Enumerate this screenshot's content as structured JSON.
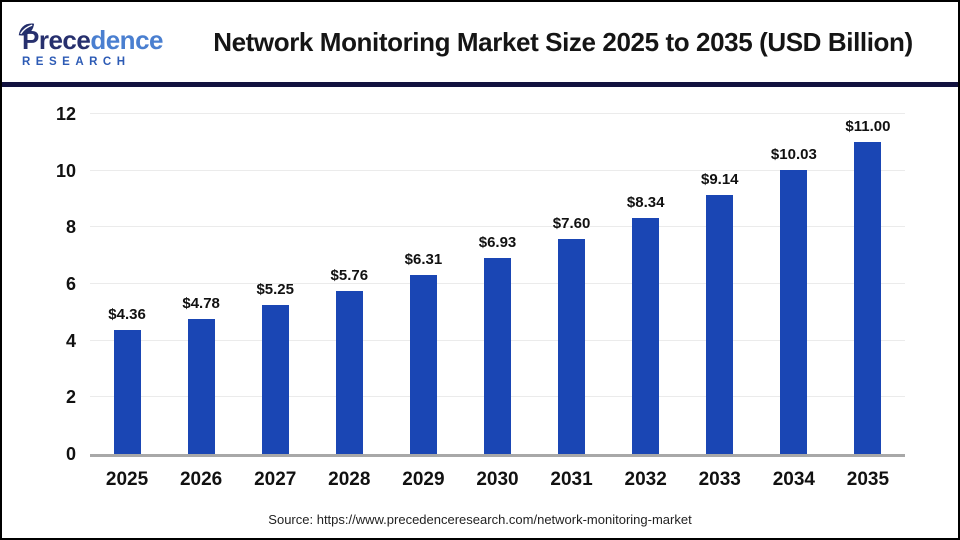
{
  "header": {
    "logo": {
      "name_part1": "Prece",
      "name_part2": "dence",
      "subtitle": "RESEARCH"
    },
    "title": "Network Monitoring Market Size 2025 to 2035 (USD Billion)"
  },
  "chart_data": {
    "type": "bar",
    "title": "Network Monitoring Market Size 2025 to 2035 (USD Billion)",
    "categories": [
      "2025",
      "2026",
      "2027",
      "2028",
      "2029",
      "2030",
      "2031",
      "2032",
      "2033",
      "2034",
      "2035"
    ],
    "values": [
      4.36,
      4.78,
      5.25,
      5.76,
      6.31,
      6.93,
      7.6,
      8.34,
      9.14,
      10.03,
      11.0
    ],
    "value_labels": [
      "$4.36",
      "$4.78",
      "$5.25",
      "$5.76",
      "$6.31",
      "$6.93",
      "$7.60",
      "$8.34",
      "$9.14",
      "$10.03",
      "$11.00"
    ],
    "xlabel": "",
    "ylabel": "",
    "ylim": [
      0,
      12
    ],
    "yticks": [
      0,
      2,
      4,
      6,
      8,
      10,
      12
    ],
    "grid": "horizontal",
    "legend": "none"
  },
  "footer": {
    "source": "Source: https://www.precedenceresearch.com/network-monitoring-market"
  },
  "colors": {
    "bar": "#1a46b4",
    "header_divider": "#12123f",
    "axis_line": "#a8a8a8",
    "gridline": "#ebebeb",
    "logo_dark": "#27306e",
    "logo_light": "#4a7fd0",
    "logo_research": "#2d5bb5"
  }
}
